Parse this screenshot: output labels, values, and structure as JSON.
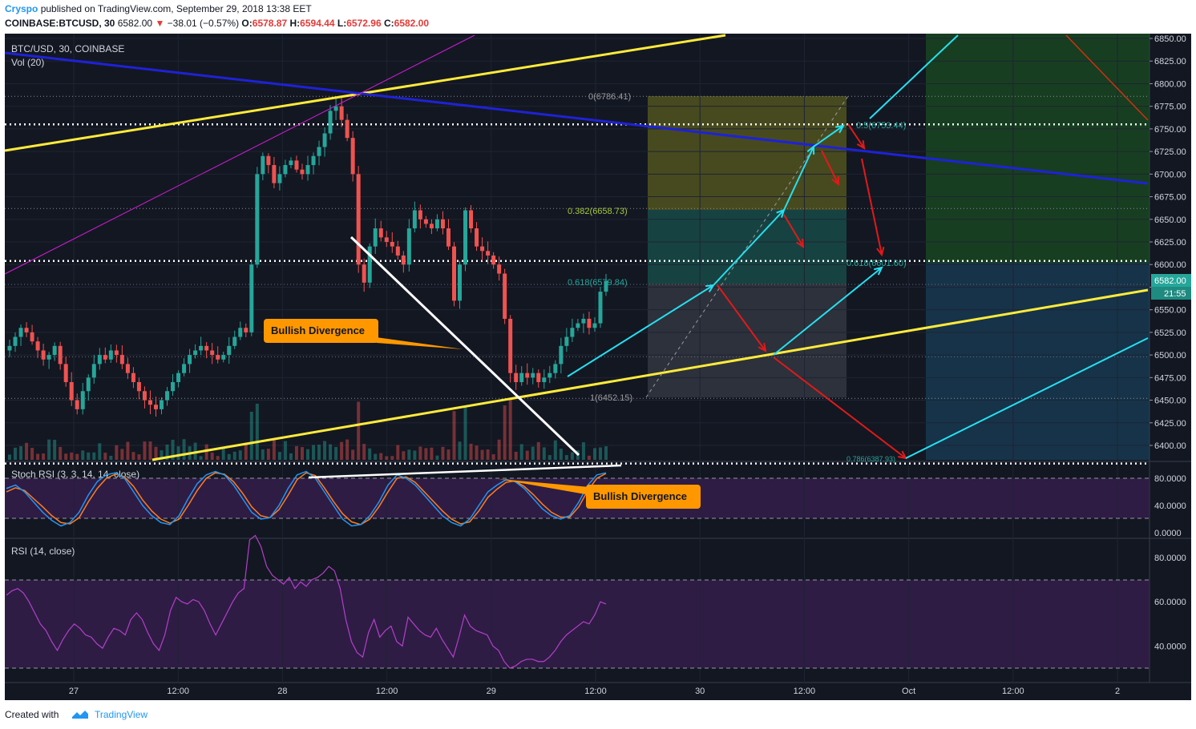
{
  "header": {
    "author": "Cryspo",
    "published_text": "published on TradingView.com, September 29, 2018 13:38 EET",
    "symbol": "COINBASE:BTCUSD, 30",
    "last": "6582.00",
    "change": "−38.01 (−0.57%)",
    "o_label": "O:",
    "o_value": "6578.87",
    "h_label": "H:",
    "h_value": "6594.44",
    "l_label": "L:",
    "l_value": "6572.96",
    "c_label": "C:",
    "c_value": "6582.00"
  },
  "footer": {
    "created_with": "Created with",
    "brand": "TradingView"
  },
  "colors": {
    "background": "#131722",
    "bull": "#26a69a",
    "bear": "#ef5350",
    "trend_yellow": "#ffeb3b",
    "trend_blue": "#1e22d6",
    "trend_white": "#ffffff",
    "arrow_cyan": "#26e0f0",
    "arrow_red": "#e01a1a",
    "stoch_blue": "#2196f3",
    "stoch_orange": "#ff7d1f",
    "rsi_line": "#b53fc9",
    "callout": "#ff9800",
    "fib_text": "#8bc34a"
  },
  "chart_data": [
    {
      "type": "candlestick",
      "title": "BTC/USD, 30, COINBASE",
      "overlay": "Vol (20)",
      "ylim": [
        6380,
        6850
      ],
      "y_ticks": [
        "6850.00",
        "6825.00",
        "6800.00",
        "6775.00",
        "6750.00",
        "6725.00",
        "6700.00",
        "6675.00",
        "6650.00",
        "6625.00",
        "6600.00",
        "6575.00",
        "6550.00",
        "6525.00",
        "6500.00",
        "6475.00",
        "6450.00",
        "6425.00",
        "6400.00"
      ],
      "x_ticks": [
        "27",
        "12:00",
        "28",
        "12:00",
        "29",
        "12:00",
        "30",
        "12:00",
        "Oct",
        "12:00",
        "2"
      ],
      "last_price": "6582.00",
      "countdown": "21:55",
      "close_series": [
        6510,
        6520,
        6530,
        6525,
        6515,
        6505,
        6495,
        6500,
        6510,
        6490,
        6470,
        6450,
        6440,
        6460,
        6475,
        6490,
        6500,
        6495,
        6505,
        6500,
        6490,
        6480,
        6470,
        6460,
        6450,
        6445,
        6440,
        6450,
        6460,
        6470,
        6480,
        6490,
        6500,
        6505,
        6510,
        6505,
        6500,
        6495,
        6500,
        6510,
        6520,
        6530,
        6525,
        6600,
        6700,
        6720,
        6710,
        6690,
        6700,
        6710,
        6715,
        6705,
        6700,
        6710,
        6720,
        6730,
        6745,
        6770,
        6775,
        6760,
        6740,
        6700,
        6600,
        6580,
        6620,
        6640,
        6630,
        6625,
        6620,
        6610,
        6600,
        6640,
        6660,
        6650,
        6645,
        6640,
        6650,
        6640,
        6620,
        6560,
        6600,
        6660,
        6640,
        6620,
        6615,
        6610,
        6600,
        6590,
        6540,
        6480,
        6470,
        6480,
        6475,
        6480,
        6470,
        6475,
        6480,
        6490,
        6510,
        6520,
        6530,
        6535,
        6540,
        6530,
        6535,
        6570,
        6582
      ],
      "fib_levels": [
        {
          "label": "0(6786.41)"
        },
        {
          "label": "0.5(6753.44)"
        },
        {
          "label": "0.382(6658.73)"
        },
        {
          "label": "0.618(6579.84)"
        },
        {
          "label": "0.618(6601.60)"
        },
        {
          "label": "1(6452.15)"
        },
        {
          "label": "0.786(6387.93)"
        }
      ],
      "annotations": [
        "Bullish Divergence"
      ]
    },
    {
      "type": "line",
      "title": "Stoch RSI (3, 3, 14, 14, close)",
      "ylim": [
        0,
        100
      ],
      "y_ticks": [
        "80.0000",
        "40.0000",
        "0.0000"
      ],
      "series": [
        {
          "values": [
            65,
            70,
            60,
            45,
            30,
            18,
            10,
            15,
            30,
            55,
            75,
            85,
            88,
            80,
            60,
            40,
            25,
            15,
            12,
            25,
            50,
            72,
            85,
            90,
            85,
            70,
            50,
            30,
            20,
            22,
            40,
            65,
            85,
            90,
            80,
            60,
            40,
            20,
            10,
            12,
            25,
            45,
            70,
            85,
            80,
            70,
            55,
            40,
            25,
            15,
            10,
            20,
            40,
            60,
            70,
            78,
            75,
            65,
            50,
            35,
            25,
            20,
            25,
            45,
            70,
            85,
            88
          ]
        },
        {
          "values": [
            60,
            66,
            62,
            50,
            38,
            25,
            15,
            13,
            22,
            45,
            65,
            80,
            86,
            82,
            68,
            48,
            32,
            20,
            14,
            20,
            40,
            62,
            80,
            88,
            86,
            75,
            58,
            38,
            25,
            22,
            34,
            55,
            78,
            88,
            84,
            66,
            46,
            28,
            16,
            12,
            20,
            38,
            60,
            80,
            82,
            74,
            60,
            46,
            32,
            20,
            13,
            16,
            32,
            52,
            64,
            74,
            76,
            68,
            56,
            42,
            30,
            23,
            23,
            38,
            62,
            80,
            87
          ]
        }
      ],
      "annotations": [
        "Bullish Divergence"
      ]
    },
    {
      "type": "line",
      "title": "RSI (14, close)",
      "ylim": [
        25,
        90
      ],
      "y_ticks": [
        "80.0000",
        "60.0000",
        "40.0000"
      ],
      "series": [
        {
          "values": [
            63,
            65,
            66,
            64,
            60,
            55,
            50,
            47,
            42,
            38,
            43,
            47,
            50,
            48,
            45,
            44,
            41,
            39,
            44,
            48,
            47,
            45,
            52,
            55,
            52,
            46,
            41,
            38,
            45,
            56,
            62,
            60,
            59,
            61,
            60,
            56,
            50,
            45,
            50,
            55,
            60,
            64,
            66,
            88,
            90,
            85,
            76,
            72,
            70,
            68,
            71,
            66,
            69,
            67,
            70,
            71,
            73,
            76,
            74,
            66,
            52,
            42,
            37,
            35,
            46,
            52,
            44,
            47,
            49,
            42,
            40,
            53,
            50,
            47,
            45,
            44,
            48,
            43,
            39,
            35,
            44,
            54,
            49,
            47,
            46,
            45,
            40,
            38,
            33,
            30,
            31,
            33,
            34,
            34,
            33,
            33,
            35,
            38,
            42,
            45,
            47,
            49,
            51,
            50,
            54,
            60,
            59
          ]
        }
      ]
    }
  ]
}
